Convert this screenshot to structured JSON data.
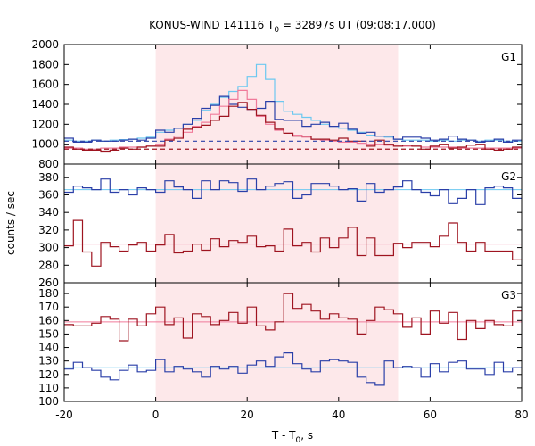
{
  "chart_data": {
    "type": "line",
    "title_main": "KONUS-WIND 141116 T",
    "title_sub": "0",
    "title_rest": " = 32897s UT (09:08:17.000)",
    "xlabel_main": "T - T",
    "xlabel_sub": "0",
    "xlabel_rest": ", s",
    "ylabel": "counts / sec",
    "xlim": [
      -20,
      80
    ],
    "x_ticks": [
      "-20",
      "0",
      "20",
      "40",
      "60",
      "80"
    ],
    "highlight_interval": [
      0,
      53
    ],
    "colors": {
      "highlight": "#fde8ea",
      "dark_blue": "#2a3fa8",
      "light_blue": "#6cc8f0",
      "dark_red": "#9e1420",
      "light_red": "#f07a9a"
    },
    "panels": [
      {
        "label": "G1",
        "ylim": [
          800,
          2000
        ],
        "y_ticks": [
          800,
          1000,
          1200,
          1400,
          1600,
          1800,
          2000
        ],
        "step_x": [
          -20,
          -18,
          -16,
          -14,
          -12,
          -10,
          -8,
          -6,
          -4,
          -2,
          0,
          2,
          4,
          6,
          8,
          10,
          12,
          14,
          16,
          18,
          20,
          22,
          24,
          26,
          28,
          30,
          32,
          34,
          36,
          38,
          40,
          42,
          44,
          46,
          48,
          50,
          52,
          54,
          56,
          58,
          60,
          62,
          64,
          66,
          68,
          70,
          72,
          74,
          76,
          78,
          80
        ],
        "series": [
          {
            "color_key": "light_blue",
            "style": "step",
            "values": [
              1040,
              1030,
              1030,
              1040,
              1030,
              1040,
              1045,
              1050,
              1060,
              1070,
              1120,
              1140,
              1160,
              1200,
              1240,
              1340,
              1400,
              1470,
              1530,
              1580,
              1680,
              1800,
              1650,
              1430,
              1330,
              1300,
              1270,
              1240,
              1200,
              1180,
              1160,
              1140,
              1120,
              1090,
              1080,
              1070,
              1050,
              1040,
              1040,
              1040,
              1030,
              1040,
              1030,
              1040,
              1040,
              1030,
              1040,
              1040,
              1030,
              1030
            ]
          },
          {
            "color_key": "dark_blue",
            "style": "step",
            "values": [
              1060,
              1020,
              1020,
              1040,
              1030,
              1030,
              1040,
              1050,
              1040,
              1060,
              1140,
              1120,
              1160,
              1200,
              1260,
              1360,
              1390,
              1480,
              1400,
              1370,
              1350,
              1360,
              1430,
              1250,
              1240,
              1240,
              1180,
              1200,
              1220,
              1180,
              1210,
              1150,
              1110,
              1120,
              1080,
              1080,
              1050,
              1070,
              1070,
              1060,
              1040,
              1050,
              1080,
              1050,
              1040,
              1020,
              1030,
              1050,
              1020,
              1040
            ]
          },
          {
            "color_key": "light_red",
            "style": "step",
            "values": [
              960,
              960,
              950,
              950,
              960,
              960,
              970,
              970,
              970,
              980,
              1000,
              1050,
              1080,
              1120,
              1180,
              1220,
              1300,
              1380,
              1450,
              1540,
              1450,
              1280,
              1200,
              1140,
              1110,
              1090,
              1070,
              1050,
              1040,
              1030,
              1020,
              1020,
              1010,
              1000,
              1000,
              990,
              980,
              980,
              980,
              970,
              970,
              970,
              970,
              960,
              960,
              960,
              960,
              960,
              960,
              960
            ]
          },
          {
            "color_key": "dark_red",
            "style": "step",
            "values": [
              970,
              950,
              940,
              940,
              930,
              940,
              960,
              950,
              970,
              980,
              980,
              1040,
              1060,
              1150,
              1170,
              1190,
              1240,
              1280,
              1380,
              1420,
              1350,
              1290,
              1220,
              1150,
              1110,
              1080,
              1080,
              1050,
              1050,
              1040,
              1060,
              1030,
              1030,
              980,
              1040,
              1000,
              980,
              990,
              980,
              950,
              980,
              1000,
              960,
              970,
              990,
              1000,
              950,
              940,
              950,
              970
            ]
          },
          {
            "color_key": "dark_blue",
            "style": "dashed",
            "level": 1030
          },
          {
            "color_key": "dark_red",
            "style": "dashed",
            "level": 950
          }
        ]
      },
      {
        "label": "G2",
        "ylim": [
          260,
          395
        ],
        "y_ticks": [
          260,
          280,
          300,
          320,
          340,
          360,
          380
        ],
        "step_x": [
          -20,
          -18,
          -16,
          -14,
          -12,
          -10,
          -8,
          -6,
          -4,
          -2,
          0,
          2,
          4,
          6,
          8,
          10,
          12,
          14,
          16,
          18,
          20,
          22,
          24,
          26,
          28,
          30,
          32,
          34,
          36,
          38,
          40,
          42,
          44,
          46,
          48,
          50,
          52,
          54,
          56,
          58,
          60,
          62,
          64,
          66,
          68,
          70,
          72,
          74,
          76,
          78,
          80
        ],
        "series": [
          {
            "color_key": "light_blue",
            "style": "level",
            "level": 366
          },
          {
            "color_key": "light_red",
            "style": "level",
            "level": 304
          },
          {
            "color_key": "dark_blue",
            "style": "step",
            "values": [
              363,
              370,
              368,
              366,
              378,
              363,
              366,
              360,
              368,
              366,
              363,
              376,
              369,
              366,
              356,
              376,
              366,
              376,
              374,
              364,
              378,
              366,
              370,
              373,
              375,
              356,
              360,
              373,
              373,
              370,
              366,
              367,
              353,
              373,
              363,
              366,
              369,
              376,
              366,
              363,
              359,
              366,
              350,
              356,
              366,
              349,
              368,
              370,
              368,
              356
            ]
          },
          {
            "color_key": "dark_red",
            "style": "step",
            "values": [
              302,
              331,
              295,
              279,
              306,
              301,
              296,
              303,
              306,
              296,
              303,
              315,
              294,
              296,
              304,
              297,
              310,
              301,
              308,
              306,
              313,
              301,
              302,
              296,
              321,
              302,
              306,
              295,
              311,
              300,
              311,
              323,
              291,
              311,
              291,
              291,
              305,
              300,
              306,
              306,
              301,
              313,
              328,
              306,
              296,
              306,
              296,
              296,
              296,
              286
            ]
          }
        ]
      },
      {
        "label": "G3",
        "ylim": [
          100,
          188
        ],
        "y_ticks": [
          100,
          110,
          120,
          130,
          140,
          150,
          160,
          170,
          180
        ],
        "step_x": [
          -20,
          -18,
          -16,
          -14,
          -12,
          -10,
          -8,
          -6,
          -4,
          -2,
          0,
          2,
          4,
          6,
          8,
          10,
          12,
          14,
          16,
          18,
          20,
          22,
          24,
          26,
          28,
          30,
          32,
          34,
          36,
          38,
          40,
          42,
          44,
          46,
          48,
          50,
          52,
          54,
          56,
          58,
          60,
          62,
          64,
          66,
          68,
          70,
          72,
          74,
          76,
          78,
          80
        ],
        "series": [
          {
            "color_key": "light_red",
            "style": "level",
            "level": 159
          },
          {
            "color_key": "light_blue",
            "style": "level",
            "level": 125
          },
          {
            "color_key": "dark_red",
            "style": "step",
            "values": [
              157,
              156,
              156,
              158,
              163,
              161,
              145,
              161,
              156,
              165,
              170,
              157,
              162,
              147,
              165,
              163,
              157,
              160,
              166,
              158,
              170,
              156,
              153,
              159,
              180,
              169,
              172,
              167,
              161,
              165,
              162,
              161,
              150,
              160,
              170,
              168,
              165,
              155,
              162,
              150,
              167,
              158,
              166,
              146,
              160,
              154,
              160,
              157,
              156,
              167
            ]
          },
          {
            "color_key": "dark_blue",
            "style": "step",
            "values": [
              124,
              129,
              125,
              123,
              118,
              116,
              123,
              127,
              122,
              123,
              131,
              122,
              126,
              124,
              122,
              118,
              126,
              124,
              126,
              121,
              127,
              130,
              126,
              133,
              136,
              128,
              124,
              122,
              130,
              131,
              130,
              129,
              118,
              114,
              112,
              130,
              125,
              126,
              125,
              118,
              128,
              122,
              129,
              130,
              124,
              124,
              120,
              129,
              122,
              125
            ]
          }
        ]
      }
    ]
  }
}
